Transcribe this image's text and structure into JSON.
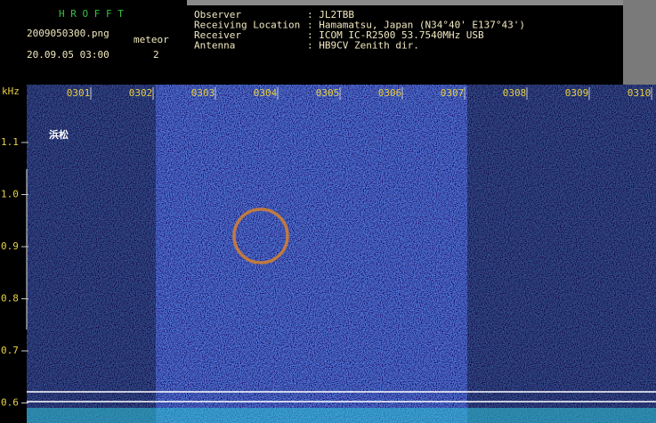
{
  "header": {
    "program": "H R O F F T",
    "filename": "2009050300.png",
    "meteor_label": "meteor",
    "datetime": "20.09.05 03:00",
    "meteor_count": "2",
    "fields": [
      {
        "label": "Observer",
        "value": ": JL2TBB"
      },
      {
        "label": "Receiving Location",
        "value": ": Hamamatsu, Japan (N34°40' E137°43')"
      },
      {
        "label": "Receiver",
        "value": ": ICOM IC-R2500 53.7540MHz USB"
      },
      {
        "label": "Antenna",
        "value": ": HB9CV Zenith dir."
      }
    ]
  },
  "spectrogram": {
    "freq_unit": "kHz",
    "time_labels": [
      "0301",
      "0302",
      "0303",
      "0304",
      "0305",
      "0306",
      "0307",
      "0308",
      "0309",
      "0310"
    ],
    "freq_labels": [
      "1.1",
      "1.0",
      "0.9",
      "0.8",
      "0.7",
      "0.6"
    ],
    "location": "浜松"
  }
}
